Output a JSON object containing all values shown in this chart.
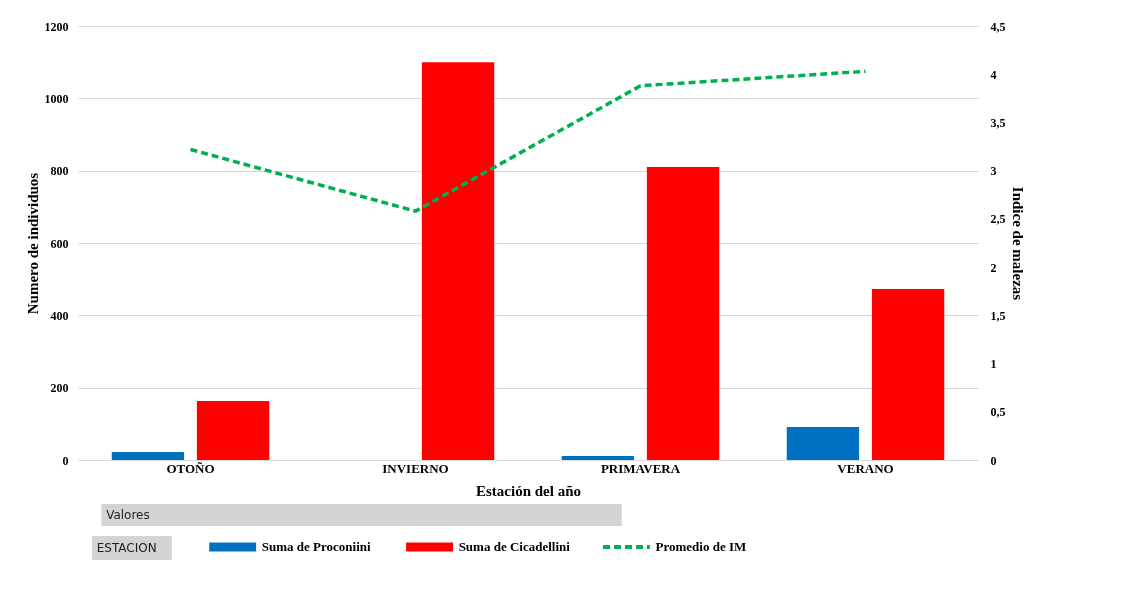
{
  "chart_data": {
    "type": "bar",
    "xlabel": "Estación del año",
    "ylabel": "Numero de individuos",
    "y2label": "Indice de malezas",
    "categories": [
      "OTOÑO",
      "INVIERNO",
      "PRIMAVERA",
      "VERANO"
    ],
    "series": [
      {
        "name": "Suma de Proconiini",
        "color": "#0070c0",
        "values": [
          22,
          null,
          11,
          91
        ]
      },
      {
        "name": "Suma de Cicadellini",
        "color": "#ff0000",
        "values": [
          163,
          1100,
          810,
          473
        ]
      },
      {
        "name": "Promedio de IM",
        "color": "#00b050",
        "type": "line",
        "axis": "y2",
        "line_style": "dashed",
        "values": [
          3.22,
          2.58,
          3.88,
          4.03
        ]
      }
    ],
    "ylim": [
      0,
      1200
    ],
    "yticks": [
      0,
      200,
      400,
      600,
      800,
      1000,
      1200
    ],
    "y2lim": [
      0,
      4.5
    ],
    "y2ticks": [
      0,
      {
        "value": 0.5,
        "label": "0,5"
      },
      1,
      {
        "value": 1.5,
        "label": "1,5"
      },
      2,
      {
        "value": 2.5,
        "label": "2,5"
      },
      3,
      {
        "value": 3.5,
        "label": "3,5"
      },
      4,
      {
        "value": 4.5,
        "label": "4,5"
      }
    ],
    "grid": "y",
    "legend": "bottom",
    "annotations": [
      "Valores",
      "ESTACION"
    ]
  }
}
